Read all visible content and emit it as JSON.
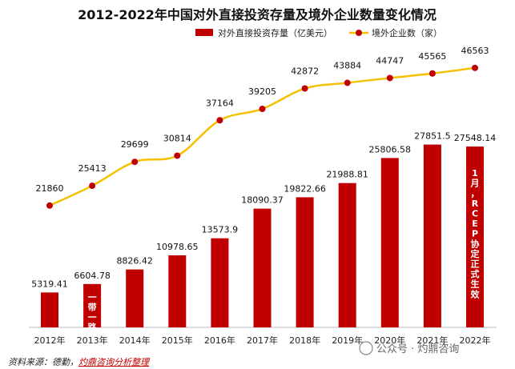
{
  "chart_data": {
    "type": "bar",
    "title": "2012-2022年中国对外直接投资存量及境外企业数量变化情况",
    "categories": [
      "2012年",
      "2013年",
      "2014年",
      "2015年",
      "2016年",
      "2017年",
      "2018年",
      "2019年",
      "2020年",
      "2021年",
      "2022年"
    ],
    "series": [
      {
        "name": "对外直接投资存量（亿美元）",
        "kind": "bar",
        "color": "#c00000",
        "values": [
          5319.41,
          6604.78,
          8826.42,
          10978.65,
          13573.9,
          18090.37,
          19822.66,
          21988.81,
          25806.58,
          27851.5,
          27548.14
        ],
        "labels": [
          "5319.41",
          "6604.78",
          "8826.42",
          "10978.65",
          "13573.9",
          "18090.37",
          "19822.66",
          "21988.81",
          "25806.58",
          "27851.5",
          "27548.14"
        ]
      },
      {
        "name": "境外企业数（家）",
        "kind": "line",
        "color": "#f5c000",
        "marker_color": "#c00000",
        "values": [
          21860,
          25413,
          29699,
          30814,
          37164,
          39205,
          42872,
          43884,
          44747,
          45565,
          46563
        ],
        "labels": [
          "21860",
          "25413",
          "29699",
          "30814",
          "37164",
          "39205",
          "42872",
          "43884",
          "44747",
          "45565",
          "46563"
        ]
      }
    ],
    "bar_ylim": [
      0,
      45000
    ],
    "line_ylim": [
      0,
      53000
    ],
    "annotations": [
      {
        "category": "2013年",
        "text": "一带一路"
      },
      {
        "category": "2022年",
        "text": "1月，RCEP协定正式生效"
      }
    ]
  },
  "source": {
    "prefix": "资料来源：德勤，",
    "link": "灼鼎咨询分析整理"
  },
  "watermark": "公众号 · 灼鼎咨询"
}
